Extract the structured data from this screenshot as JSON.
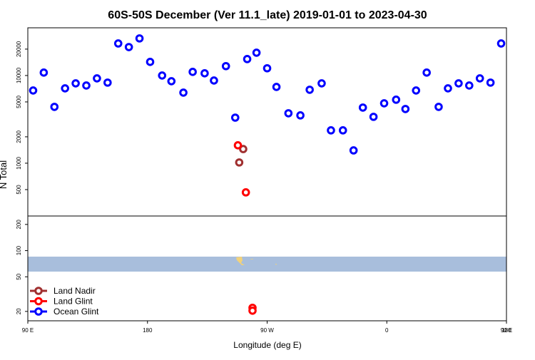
{
  "chart_data": [
    {
      "type": "scatter",
      "title": "60S-50S December (Ver 11.1_late)   2019-01-01 to 2023-04-30",
      "y_label": "N Total",
      "log_scale": true,
      "legend": "lower left",
      "xlim": [
        90,
        450
      ],
      "ylim": [
        250,
        35000
      ],
      "yticks": [
        500,
        1000,
        2000,
        5000,
        10000,
        20000
      ],
      "series": [
        {
          "name": "Land Nadir",
          "color": "#a03030",
          "x": [
            252,
            249
          ],
          "values": [
            1450,
            1020
          ]
        },
        {
          "name": "Land Glint",
          "color": "#ff0000",
          "x": [
            248,
            254
          ],
          "values": [
            1600,
            465
          ]
        },
        {
          "name": "Ocean Glint",
          "color": "#0000ff",
          "x": [
            94,
            102,
            110,
            118,
            126,
            134,
            142,
            150,
            158,
            166,
            174,
            182,
            191,
            198,
            207,
            214,
            223,
            230,
            239,
            246,
            255,
            262,
            270,
            277,
            286,
            295,
            302,
            311,
            318,
            327,
            335,
            342,
            350,
            358,
            367,
            374,
            382,
            390,
            399,
            406,
            414,
            422,
            430,
            438,
            446
          ],
          "values": [
            6750,
            10800,
            4390,
            7140,
            8140,
            7690,
            9280,
            8300,
            23200,
            21100,
            26500,
            14300,
            10000,
            8610,
            6380,
            11000,
            10600,
            8770,
            12800,
            3310,
            15400,
            18200,
            12100,
            7410,
            3710,
            3510,
            6880,
            8140,
            2370,
            2370,
            1400,
            4310,
            3380,
            4820,
            5300,
            4150,
            6750,
            10800,
            4390,
            7140,
            8140,
            7690,
            9280,
            8300,
            23200
          ]
        }
      ]
    },
    {
      "type": "scatter",
      "x_label": "Longitude (deg E)",
      "log_scale": true,
      "xlim": [
        90,
        450
      ],
      "ylim": [
        15.6,
        250
      ],
      "xticks": [
        {
          "value": 90,
          "label": "90 E"
        },
        180,
        {
          "value": 270,
          "label": "90 W"
        },
        {
          "value": 360,
          "label": "0"
        },
        {
          "value": 450,
          "label": "90 E"
        },
        {
          "value": 540,
          "label": "180"
        }
      ],
      "yticks": [
        20,
        50,
        100,
        200
      ],
      "series": [
        {
          "color": "#ff0000",
          "x": [
            259,
            259
          ],
          "values": [
            22,
            20.4
          ]
        }
      ]
    }
  ]
}
